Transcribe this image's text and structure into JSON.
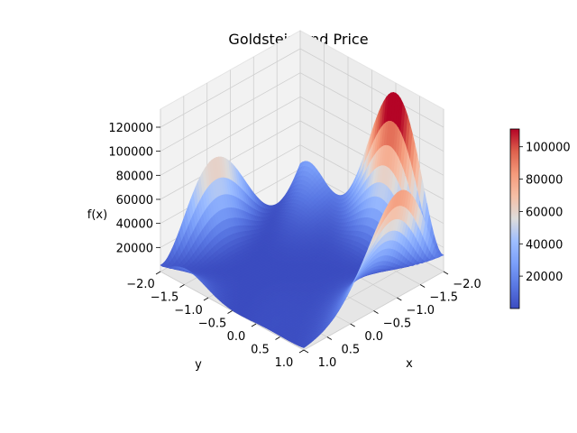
{
  "chart_data": {
    "type": "surface3d",
    "title": "Goldstein and Price",
    "xlabel": "x",
    "ylabel": "y",
    "zlabel": "f(x)",
    "function": "goldstein-price",
    "x_range": [
      -2.0,
      1.0
    ],
    "y_range": [
      -2.0,
      1.0
    ],
    "z_range": [
      3,
      111000
    ],
    "x_ticks": [
      "−2.0",
      "−1.5",
      "−1.0",
      "−0.5",
      "0.0",
      "0.5",
      "1.0"
    ],
    "y_ticks": [
      "−2.0",
      "−1.5",
      "−1.0",
      "−0.5",
      "0.0",
      "0.5",
      "1.0"
    ],
    "z_ticks": [
      "20000",
      "40000",
      "60000",
      "80000",
      "100000",
      "120000"
    ],
    "colorbar_ticks": [
      "20000",
      "40000",
      "60000",
      "80000",
      "100000"
    ],
    "colormap": "coolwarm",
    "colormap_low": "#3b4cc0",
    "colormap_mid": "#dddddd",
    "colormap_high": "#b40426",
    "grid": true,
    "colorbar_placement": "right"
  }
}
